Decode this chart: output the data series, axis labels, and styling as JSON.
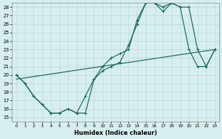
{
  "xlabel": "Humidex (Indice chaleur)",
  "xlim": [
    -0.5,
    23.5
  ],
  "ylim": [
    14.5,
    28.5
  ],
  "xticks": [
    0,
    1,
    2,
    3,
    4,
    5,
    6,
    7,
    8,
    9,
    10,
    11,
    12,
    13,
    14,
    15,
    16,
    17,
    18,
    19,
    20,
    21,
    22,
    23
  ],
  "yticks": [
    15,
    16,
    17,
    18,
    19,
    20,
    21,
    22,
    23,
    24,
    25,
    26,
    27,
    28
  ],
  "background_color": "#d7eeee",
  "grid_color": "#b8d8d8",
  "line_color": "#1a6b5a",
  "line1_x": [
    0,
    1,
    2,
    3,
    4,
    5,
    6,
    7,
    8,
    9,
    10,
    11,
    12,
    13,
    14,
    15,
    16,
    17,
    18,
    19,
    20,
    21,
    22,
    23
  ],
  "line1_y": [
    20,
    19,
    17.5,
    16.5,
    15.5,
    15.5,
    16,
    15.5,
    17.5,
    19.5,
    21,
    22,
    22.5,
    23,
    26.5,
    28.5,
    28.5,
    28,
    28.5,
    28,
    23,
    21,
    21,
    23
  ],
  "line2_x": [
    0,
    1,
    2,
    3,
    4,
    5,
    6,
    7,
    8,
    9,
    10,
    11,
    12,
    13,
    14,
    15,
    16,
    17,
    18,
    19,
    20,
    21,
    22,
    23
  ],
  "line2_y": [
    20,
    19,
    17.5,
    16.5,
    15.5,
    15.5,
    16,
    15.5,
    15.5,
    19.5,
    20.5,
    21,
    21.5,
    23.5,
    26,
    28.5,
    28.5,
    27.5,
    28.5,
    28,
    28,
    23,
    21,
    23
  ],
  "line3_x": [
    0,
    23
  ],
  "line3_y": [
    19.5,
    23
  ],
  "marker": "+",
  "markersize": 3.5,
  "linewidth": 0.9
}
